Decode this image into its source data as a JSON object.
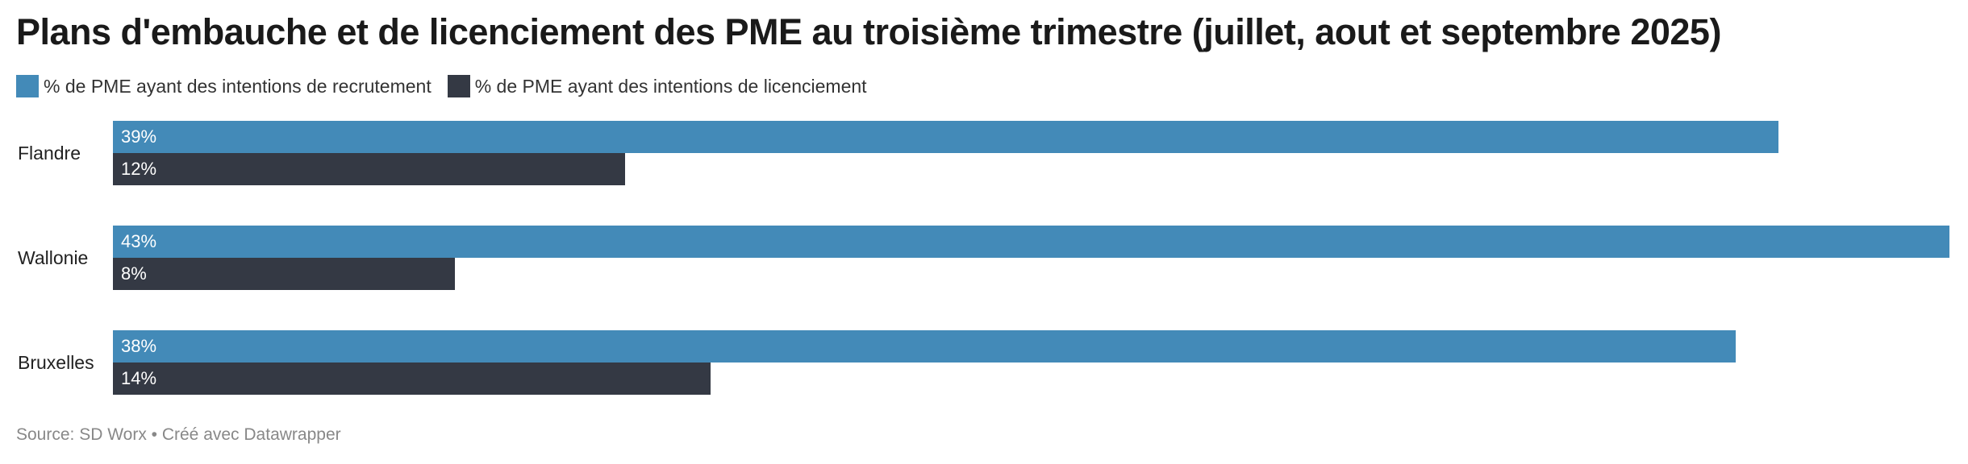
{
  "title": "Plans d'embauche et de licenciement des PME au troisième trimestre (juillet, aout et septembre 2025)",
  "legend": [
    {
      "label": "% de PME ayant des intentions de recrutement",
      "color": "#438ab8"
    },
    {
      "label": "% de PME ayant des intentions de licenciement",
      "color": "#343944"
    }
  ],
  "source": "Source: SD Worx • Créé avec Datawrapper",
  "chart_data": {
    "type": "bar",
    "orientation": "horizontal",
    "title": "Plans d'embauche et de licenciement des PME au troisième trimestre (juillet, aout et septembre 2025)",
    "categories": [
      "Flandre",
      "Wallonie",
      "Bruxelles"
    ],
    "series": [
      {
        "name": "% de PME ayant des intentions de recrutement",
        "values": [
          39,
          43,
          38
        ],
        "labels": [
          "39%",
          "43%",
          "38%"
        ],
        "color": "#438ab8"
      },
      {
        "name": "% de PME ayant des intentions de licenciement",
        "values": [
          12,
          8,
          14
        ],
        "labels": [
          "12%",
          "8%",
          "14%"
        ],
        "color": "#343944"
      }
    ],
    "xlim": [
      0,
      43
    ],
    "grid": false,
    "legend_position": "top-left",
    "xlabel": "",
    "ylabel": ""
  }
}
